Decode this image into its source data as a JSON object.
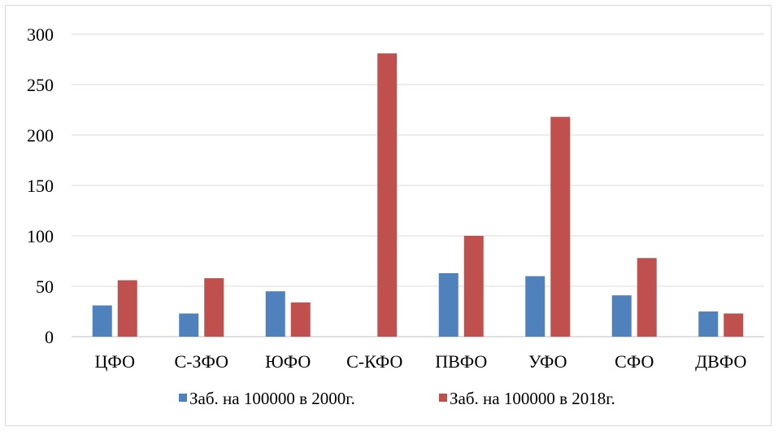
{
  "chart_data": {
    "type": "bar",
    "categories": [
      "ЦФО",
      "С-ЗФО",
      "ЮФО",
      "С-КФО",
      "ПВФО",
      "УФО",
      "СФО",
      "ДВФО"
    ],
    "series": [
      {
        "name": "Заб. на 100000 в 2000г.",
        "color": "#4f81bd",
        "values": [
          31,
          23,
          45,
          0,
          63,
          60,
          41,
          25
        ]
      },
      {
        "name": "Заб. на 100000 в 2018г.",
        "color": "#c0504d",
        "values": [
          56,
          58,
          34,
          281,
          100,
          218,
          78,
          23
        ]
      }
    ],
    "yticks": [
      "0",
      "50",
      "100",
      "150",
      "200",
      "250",
      "300"
    ],
    "ylim": [
      0,
      300
    ],
    "grid": true,
    "legend_position": "bottom"
  }
}
